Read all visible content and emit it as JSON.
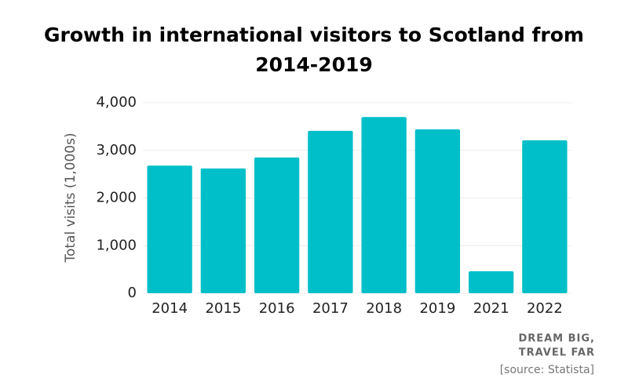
{
  "chart_data": {
    "type": "bar",
    "title": "Growth in international visitors to Scotland from 2014-2019",
    "y_label": "Total visits (1,000s)",
    "categories": [
      "2014",
      "2015",
      "2016",
      "2017",
      "2018",
      "2019",
      "2021",
      "2022"
    ],
    "values": [
      2680,
      2620,
      2850,
      3410,
      3700,
      3440,
      460,
      3210
    ],
    "color": "#00bfc8",
    "ylim": [
      0,
      4000
    ],
    "yticks": [
      0,
      {
        "value": 1000,
        "label": "1,000"
      },
      {
        "value": 2000,
        "label": "2,000"
      },
      {
        "value": 3000,
        "label": "3,000"
      },
      {
        "value": 4000,
        "label": "4,000"
      }
    ],
    "grid": true,
    "watermark": [
      "DREAM BIG,",
      "TRAVEL FAR"
    ],
    "source": "[source: Statista]"
  }
}
